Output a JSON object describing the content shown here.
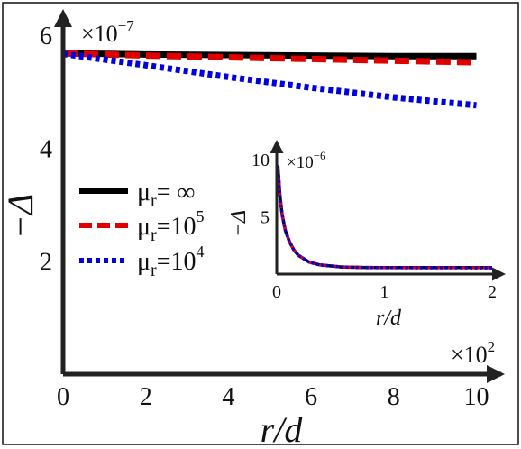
{
  "chart_data": [
    {
      "type": "line",
      "xlabel": "r/d",
      "ylabel": "−Δ",
      "x_multiplier": {
        "base": "×10",
        "exp": "2"
      },
      "y_multiplier": {
        "base": "×10",
        "exp": "−7"
      },
      "xlim": [
        0,
        10.6
      ],
      "ylim": [
        0,
        6.4
      ],
      "xticks": [
        "0",
        "2",
        "4",
        "6",
        "8",
        "10"
      ],
      "yticks": [
        "2",
        "4",
        "6"
      ],
      "legend_position": "left-middle",
      "series": [
        {
          "name": "μr= ∞",
          "legend": {
            "main": "μ",
            "sub": "r",
            "rest": "= ∞",
            "sup": ""
          },
          "color": "#000000",
          "style": "solid",
          "x": [
            0,
            2,
            4,
            6,
            8,
            10
          ],
          "y": [
            5.68,
            5.66,
            5.65,
            5.64,
            5.63,
            5.63
          ]
        },
        {
          "name": "μr=10^5",
          "legend": {
            "main": "μ",
            "sub": "r",
            "rest": "=10",
            "sup": "5"
          },
          "color": "#e00000",
          "style": "dashed",
          "x": [
            0,
            2,
            4,
            6,
            8,
            10
          ],
          "y": [
            5.68,
            5.64,
            5.61,
            5.58,
            5.55,
            5.52
          ]
        },
        {
          "name": "μr=10^4",
          "legend": {
            "main": "μ",
            "sub": "r",
            "rest": "=10",
            "sup": "4"
          },
          "color": "#0000e0",
          "style": "dotted",
          "x": [
            0,
            2,
            4,
            6,
            8,
            10
          ],
          "y": [
            5.67,
            5.47,
            5.26,
            5.07,
            4.9,
            4.76
          ]
        }
      ]
    },
    {
      "type": "line",
      "xlabel": "r/d",
      "ylabel": "−Δ",
      "y_multiplier": {
        "base": "×10",
        "exp": "−6"
      },
      "xlim": [
        0,
        2.1
      ],
      "ylim": [
        0,
        11.5
      ],
      "xticks": [
        "0",
        "1",
        "2"
      ],
      "yticks": [
        "5",
        "10"
      ],
      "series": [
        {
          "name": "μr= ∞",
          "color": "#000000",
          "style": "solid",
          "x": [
            0.01,
            0.03,
            0.05,
            0.08,
            0.12,
            0.16,
            0.2,
            0.3,
            0.4,
            0.6,
            0.8,
            1.0,
            1.5,
            2.0
          ],
          "y": [
            9.5,
            6.8,
            5.2,
            3.8,
            2.8,
            2.1,
            1.65,
            1.05,
            0.8,
            0.62,
            0.58,
            0.57,
            0.57,
            0.57
          ]
        },
        {
          "name": "μr=10^5",
          "color": "#e00000",
          "style": "dashed",
          "x": [
            0.01,
            0.03,
            0.05,
            0.08,
            0.12,
            0.16,
            0.2,
            0.3,
            0.4,
            0.6,
            0.8,
            1.0,
            1.5,
            2.0
          ],
          "y": [
            9.5,
            6.8,
            5.2,
            3.8,
            2.8,
            2.1,
            1.65,
            1.05,
            0.8,
            0.62,
            0.58,
            0.57,
            0.56,
            0.56
          ]
        },
        {
          "name": "μr=10^4",
          "color": "#0000e0",
          "style": "dotted",
          "x": [
            0.01,
            0.03,
            0.05,
            0.08,
            0.12,
            0.16,
            0.2,
            0.3,
            0.4,
            0.6,
            0.8,
            1.0,
            1.5,
            2.0
          ],
          "y": [
            9.5,
            6.8,
            5.2,
            3.8,
            2.8,
            2.1,
            1.65,
            1.05,
            0.8,
            0.62,
            0.57,
            0.56,
            0.55,
            0.54
          ]
        }
      ]
    }
  ]
}
